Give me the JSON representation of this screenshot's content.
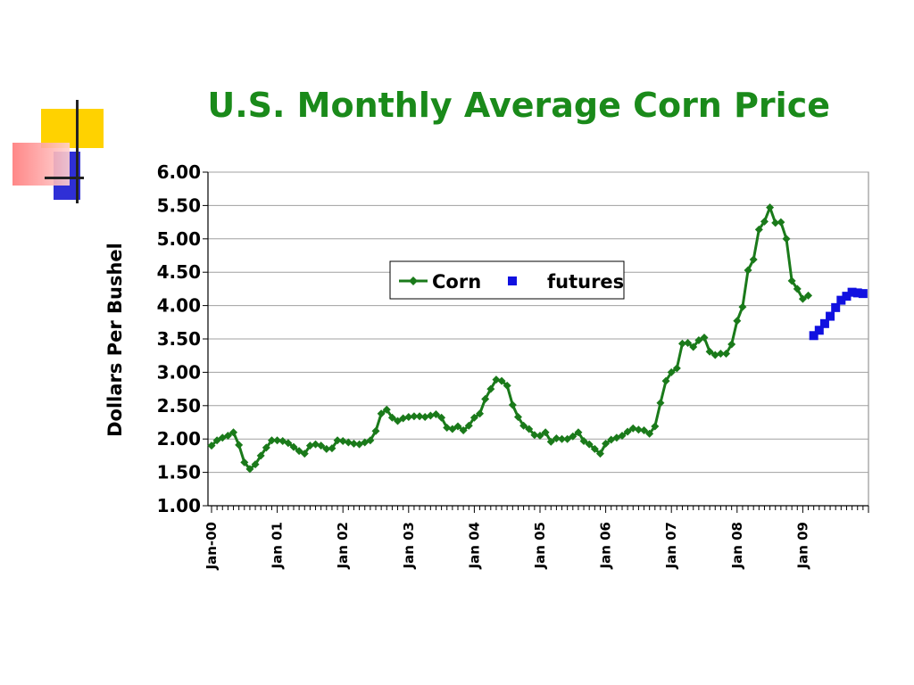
{
  "slide": {
    "title": "U.S. Monthly Average Corn Price"
  },
  "chart_data": {
    "type": "line",
    "title": "U.S. Monthly Average Corn Price",
    "xlabel": "",
    "ylabel": "Dollars Per Bushel",
    "ylim": [
      1.0,
      6.0
    ],
    "yticks": [
      "1.00",
      "1.50",
      "2.00",
      "2.50",
      "3.00",
      "3.50",
      "4.00",
      "4.50",
      "5.00",
      "5.50",
      "6.00"
    ],
    "xticks": [
      "Jan-00",
      "Jan 01",
      "Jan 02",
      "Jan 03",
      "Jan 04",
      "Jan 05",
      "Jan 06",
      "Jan 07",
      "Jan 08",
      "Jan 09"
    ],
    "grid": true,
    "legend_position": "upper-center",
    "series": [
      {
        "name": "Corn",
        "color": "#1a7a1a",
        "marker": "diamond",
        "start": "2000-01",
        "values": [
          1.9,
          1.98,
          2.02,
          2.05,
          2.1,
          1.91,
          1.65,
          1.55,
          1.62,
          1.75,
          1.87,
          1.98,
          1.98,
          1.97,
          1.94,
          1.88,
          1.82,
          1.78,
          1.9,
          1.92,
          1.9,
          1.85,
          1.86,
          1.98,
          1.97,
          1.95,
          1.93,
          1.92,
          1.95,
          1.98,
          2.12,
          2.38,
          2.44,
          2.32,
          2.27,
          2.31,
          2.33,
          2.34,
          2.34,
          2.33,
          2.35,
          2.37,
          2.32,
          2.17,
          2.15,
          2.19,
          2.13,
          2.2,
          2.32,
          2.38,
          2.6,
          2.75,
          2.89,
          2.87,
          2.8,
          2.51,
          2.33,
          2.2,
          2.15,
          2.06,
          2.05,
          2.1,
          1.96,
          2.01,
          2.0,
          2.0,
          2.04,
          2.1,
          1.97,
          1.92,
          1.85,
          1.78,
          1.93,
          1.99,
          2.02,
          2.05,
          2.11,
          2.16,
          2.14,
          2.13,
          2.08,
          2.19,
          2.54,
          2.87,
          3.0,
          3.06,
          3.43,
          3.44,
          3.38,
          3.48,
          3.52,
          3.31,
          3.26,
          3.28,
          3.28,
          3.42,
          3.77,
          3.98,
          4.53,
          4.69,
          5.14,
          5.26,
          5.47,
          5.24,
          5.25,
          5.0,
          4.37,
          4.25,
          4.1,
          4.15
        ]
      },
      {
        "name": "futures",
        "color": "#1010e0",
        "marker": "square",
        "start": "2009-03",
        "values": [
          3.55,
          3.63,
          3.73,
          3.84,
          3.97,
          4.08,
          4.14,
          4.2,
          4.19,
          4.18
        ]
      }
    ]
  }
}
